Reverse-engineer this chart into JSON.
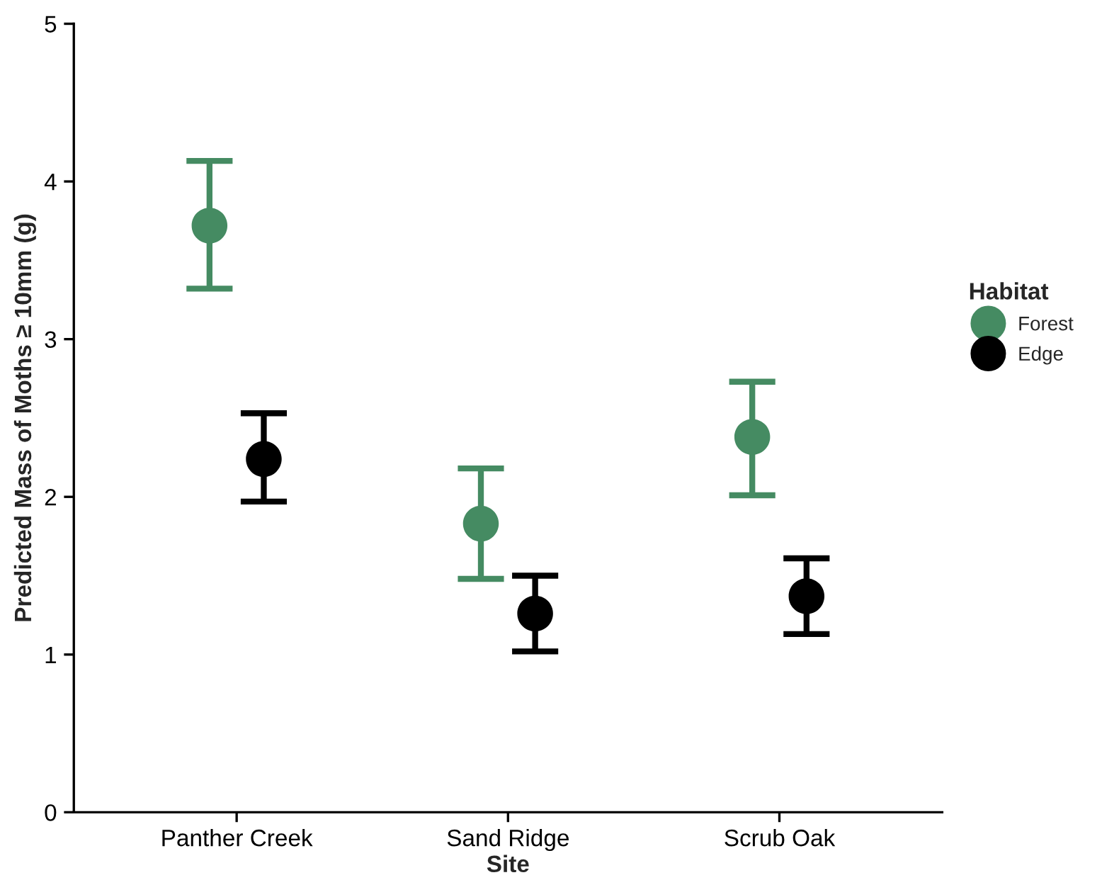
{
  "chart_data": {
    "type": "scatter",
    "xlabel": "Site",
    "ylabel": "Predicted Mass of Moths ≥ 10mm (g)",
    "legend_title": "Habitat",
    "categories": [
      "Panther Creek",
      "Sand Ridge",
      "Scrub Oak"
    ],
    "series": [
      {
        "name": "Forest",
        "color": "#458b62",
        "values": [
          3.72,
          1.83,
          2.38
        ],
        "errors": [
          [
            3.32,
            4.13
          ],
          [
            1.48,
            2.18
          ],
          [
            2.01,
            2.73
          ]
        ]
      },
      {
        "name": "Edge",
        "color": "#000000",
        "values": [
          2.24,
          1.26,
          1.37
        ],
        "errors": [
          [
            1.97,
            2.53
          ],
          [
            1.02,
            1.5
          ],
          [
            1.13,
            1.61
          ]
        ]
      }
    ],
    "ylim": [
      0,
      5
    ],
    "yticks": [
      0,
      1,
      2,
      3,
      4,
      5
    ],
    "grid": false,
    "legend": "right",
    "marker": "circle"
  }
}
